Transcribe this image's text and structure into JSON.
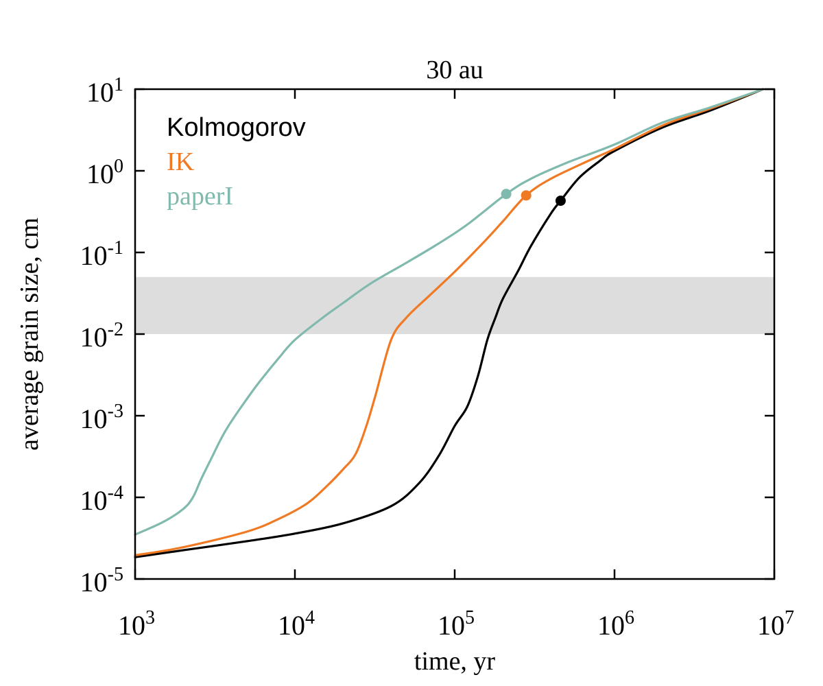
{
  "chart_data": {
    "type": "line",
    "title": "30 au",
    "xlabel": "time, yr",
    "ylabel": "average grain size, cm",
    "xscale": "log",
    "yscale": "log",
    "xlim": [
      1000,
      10000000
    ],
    "ylim": [
      1e-05,
      10
    ],
    "grid": false,
    "legend_position": "top-left",
    "x_ticks": [
      {
        "value": 1000,
        "base": "10",
        "exp": "3"
      },
      {
        "value": 10000,
        "base": "10",
        "exp": "4"
      },
      {
        "value": 100000,
        "base": "10",
        "exp": "5"
      },
      {
        "value": 1000000,
        "base": "10",
        "exp": "6"
      },
      {
        "value": 10000000,
        "base": "10",
        "exp": "7"
      }
    ],
    "y_ticks": [
      {
        "value": 1e-05,
        "base": "10",
        "exp": "-5"
      },
      {
        "value": 0.0001,
        "base": "10",
        "exp": "-4"
      },
      {
        "value": 0.001,
        "base": "10",
        "exp": "-3"
      },
      {
        "value": 0.01,
        "base": "10",
        "exp": "-2"
      },
      {
        "value": 0.1,
        "base": "10",
        "exp": "-1"
      },
      {
        "value": 1,
        "base": "10",
        "exp": "0"
      },
      {
        "value": 10,
        "base": "10",
        "exp": "1"
      }
    ],
    "shaded_band": {
      "y_min": 0.01,
      "y_max": 0.05,
      "color": "#dddddd"
    },
    "series": [
      {
        "name": "Kolmogorov",
        "color": "#000000",
        "x": [
          1000,
          2000,
          5000,
          10000,
          20000,
          40000,
          60000,
          80000,
          100000,
          120000,
          140000,
          160000,
          180000,
          200000,
          250000,
          300000,
          400000,
          460000,
          600000,
          800000,
          1000000,
          2000000,
          4000000,
          8500000
        ],
        "y": [
          1.85e-05,
          2.25e-05,
          2.9e-05,
          3.6e-05,
          4.8e-05,
          7.8e-05,
          0.00015,
          0.00033,
          0.00075,
          0.0013,
          0.0031,
          0.0085,
          0.016,
          0.027,
          0.06,
          0.12,
          0.3,
          0.43,
          0.82,
          1.3,
          1.75,
          3.4,
          5.5,
          10
        ]
      },
      {
        "name": "IK",
        "color": "#f07a24",
        "x": [
          1000,
          2000,
          5000,
          8000,
          12000,
          16000,
          20000,
          24000,
          28000,
          32000,
          40000,
          50000,
          70000,
          100000,
          150000,
          200000,
          280000,
          400000,
          700000,
          1000000,
          2000000,
          4000000,
          8500000
        ],
        "y": [
          1.95e-05,
          2.45e-05,
          3.8e-05,
          5.5e-05,
          8.5e-05,
          0.00014,
          0.00022,
          0.00034,
          0.00075,
          0.0018,
          0.0085,
          0.016,
          0.03,
          0.058,
          0.13,
          0.24,
          0.5,
          0.8,
          1.35,
          1.85,
          3.6,
          5.8,
          10
        ]
      },
      {
        "name": "paperI",
        "color": "#80b9ad",
        "x": [
          1000,
          1500,
          2000,
          2300,
          2600,
          3000,
          3500,
          4000,
          5000,
          6000,
          8000,
          10000,
          15000,
          20000,
          30000,
          50000,
          80000,
          120000,
          210000,
          300000,
          500000,
          1000000,
          2000000,
          4000000,
          8500000
        ],
        "y": [
          3.5e-05,
          5e-05,
          7.2e-05,
          0.0001,
          0.00017,
          0.0003,
          0.00055,
          0.00085,
          0.0016,
          0.0026,
          0.0052,
          0.0085,
          0.016,
          0.024,
          0.042,
          0.075,
          0.13,
          0.22,
          0.52,
          0.8,
          1.25,
          2.1,
          3.9,
          6.0,
          10
        ]
      }
    ],
    "markers": [
      {
        "series": "paperI",
        "x": 210000,
        "y": 0.52,
        "color": "#80b9ad"
      },
      {
        "series": "IK",
        "x": 280000,
        "y": 0.5,
        "color": "#f07a24"
      },
      {
        "series": "Kolmogorov",
        "x": 460000,
        "y": 0.43,
        "color": "#000000"
      }
    ]
  }
}
